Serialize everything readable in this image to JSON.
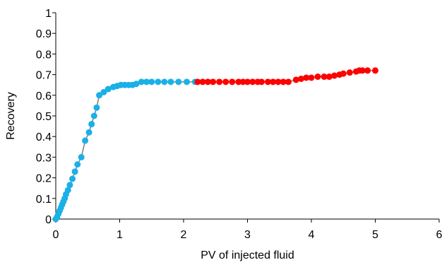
{
  "chart_data": {
    "type": "scatter",
    "xlabel": "PV of injected fluid",
    "ylabel": "Recovery",
    "xlim": [
      0,
      6
    ],
    "ylim": [
      0,
      1
    ],
    "x_ticks": [
      "0",
      "1",
      "2",
      "3",
      "4",
      "5",
      "6"
    ],
    "y_ticks": [
      "0",
      "0.1",
      "0.2",
      "0.3",
      "0.4",
      "0.5",
      "0.6",
      "0.7",
      "0.8",
      "0.9",
      "1"
    ],
    "grid": false,
    "legend": "none",
    "line_color": "#7f7f7f",
    "series": [
      {
        "color": "#1ab0e8",
        "x": [
          0,
          0.02,
          0.04,
          0.06,
          0.08,
          0.1,
          0.12,
          0.14,
          0.16,
          0.19,
          0.22,
          0.26,
          0.3,
          0.34,
          0.4,
          0.46,
          0.52,
          0.56,
          0.6,
          0.64,
          0.68,
          0.75,
          0.82,
          0.9,
          0.96,
          1.02,
          1.08,
          1.14,
          1.2,
          1.26,
          1.34,
          1.42,
          1.5,
          1.6,
          1.7,
          1.8,
          1.92,
          2.05,
          2.18
        ],
        "y": [
          0,
          0.01,
          0.025,
          0.04,
          0.055,
          0.07,
          0.085,
          0.1,
          0.12,
          0.14,
          0.165,
          0.195,
          0.23,
          0.265,
          0.3,
          0.38,
          0.42,
          0.46,
          0.5,
          0.54,
          0.6,
          0.615,
          0.63,
          0.64,
          0.645,
          0.65,
          0.65,
          0.65,
          0.65,
          0.655,
          0.665,
          0.665,
          0.665,
          0.665,
          0.665,
          0.665,
          0.665,
          0.665,
          0.665
        ]
      },
      {
        "color": "#ff0000",
        "x": [
          2.22,
          2.3,
          2.38,
          2.46,
          2.56,
          2.66,
          2.76,
          2.86,
          2.93,
          3.0,
          3.08,
          3.16,
          3.22,
          3.32,
          3.4,
          3.48,
          3.56,
          3.64,
          3.76,
          3.84,
          3.92,
          4.0,
          4.1,
          4.2,
          4.28,
          4.36,
          4.44,
          4.5,
          4.6,
          4.7,
          4.75,
          4.8,
          4.88,
          5.0
        ],
        "y": [
          0.665,
          0.665,
          0.665,
          0.665,
          0.665,
          0.665,
          0.665,
          0.665,
          0.665,
          0.665,
          0.665,
          0.665,
          0.665,
          0.665,
          0.665,
          0.665,
          0.665,
          0.665,
          0.675,
          0.68,
          0.685,
          0.685,
          0.69,
          0.69,
          0.69,
          0.695,
          0.7,
          0.705,
          0.71,
          0.715,
          0.72,
          0.72,
          0.72,
          0.72
        ]
      }
    ]
  }
}
